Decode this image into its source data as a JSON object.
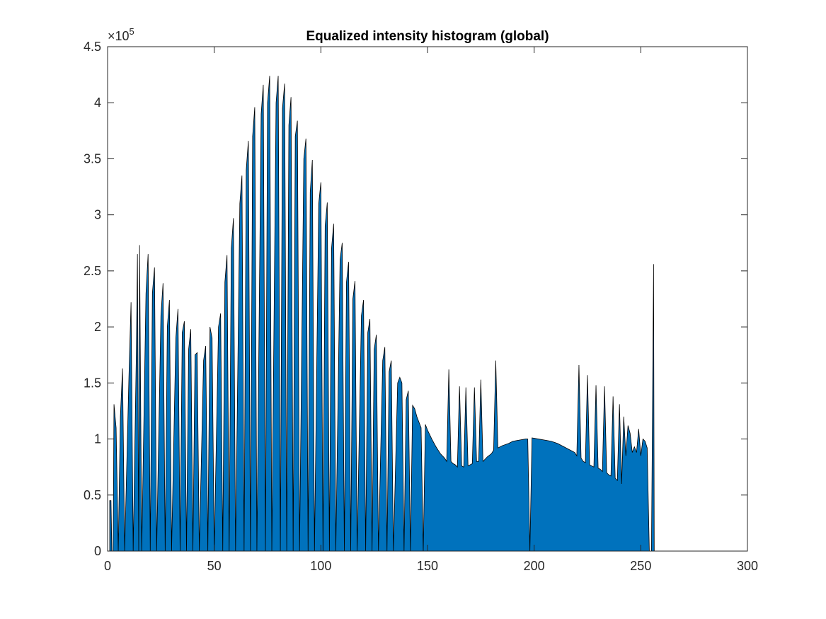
{
  "chart_data": {
    "type": "area",
    "title": "Equalized intensity histogram (global)",
    "xlabel": "",
    "ylabel": "",
    "xlim": [
      0,
      300
    ],
    "ylim": [
      0,
      4.5
    ],
    "y_multiplier_label": "×10",
    "y_multiplier_exponent": "5",
    "x_ticks": [
      0,
      50,
      100,
      150,
      200,
      250,
      300
    ],
    "x_tick_labels": [
      "0",
      "50",
      "100",
      "150",
      "200",
      "250",
      "300"
    ],
    "y_ticks": [
      0,
      0.5,
      1,
      1.5,
      2,
      2.5,
      3,
      3.5,
      4,
      4.5
    ],
    "y_tick_labels": [
      "0",
      "0.5",
      "1",
      "1.5",
      "2",
      "2.5",
      "3",
      "3.5",
      "4",
      "4.5"
    ],
    "grid": false,
    "box": true,
    "fill_color": "#0072BD",
    "edge_color": "#000000",
    "series": [
      {
        "values": [
          [
            1,
            0.45
          ],
          [
            1.6,
            0.45
          ],
          [
            2,
            0
          ],
          [
            2.6,
            0
          ],
          [
            3,
            1.31
          ],
          [
            4,
            1.1
          ],
          [
            5,
            0
          ],
          [
            6,
            1.2
          ],
          [
            7,
            1.63
          ],
          [
            8,
            0
          ],
          [
            10,
            1.55
          ],
          [
            11,
            2.22
          ],
          [
            12,
            0
          ],
          [
            13.5,
            1.8
          ],
          [
            14,
            2.65
          ],
          [
            14.6,
            0
          ],
          [
            15,
            2.73
          ],
          [
            16,
            0
          ],
          [
            18,
            2.3
          ],
          [
            19,
            2.65
          ],
          [
            20,
            0
          ],
          [
            21,
            2.3
          ],
          [
            22,
            2.53
          ],
          [
            23,
            0
          ],
          [
            25,
            2.1
          ],
          [
            26,
            2.39
          ],
          [
            27,
            0
          ],
          [
            28,
            2.0
          ],
          [
            29,
            2.24
          ],
          [
            30,
            0
          ],
          [
            32,
            1.9
          ],
          [
            33,
            2.16
          ],
          [
            34,
            0
          ],
          [
            35,
            1.95
          ],
          [
            36,
            2.05
          ],
          [
            37,
            0
          ],
          [
            38,
            1.8
          ],
          [
            39,
            1.98
          ],
          [
            40,
            0
          ],
          [
            41,
            1.75
          ],
          [
            42,
            1.77
          ],
          [
            43,
            0
          ],
          [
            45,
            1.7
          ],
          [
            46,
            1.83
          ],
          [
            47,
            0
          ],
          [
            48,
            2.0
          ],
          [
            49,
            1.9
          ],
          [
            50,
            0
          ],
          [
            52,
            2.0
          ],
          [
            53,
            2.12
          ],
          [
            54,
            0
          ],
          [
            55,
            2.4
          ],
          [
            56,
            2.64
          ],
          [
            57,
            0
          ],
          [
            58,
            2.7
          ],
          [
            59,
            2.97
          ],
          [
            60,
            0
          ],
          [
            62,
            3.1
          ],
          [
            63,
            3.35
          ],
          [
            64,
            0
          ],
          [
            65,
            3.4
          ],
          [
            66,
            3.66
          ],
          [
            67,
            0
          ],
          [
            68,
            3.7
          ],
          [
            69,
            3.96
          ],
          [
            70,
            0
          ],
          [
            72,
            3.9
          ],
          [
            73,
            4.16
          ],
          [
            74,
            0
          ],
          [
            75,
            4.0
          ],
          [
            76,
            4.24
          ],
          [
            77,
            0
          ],
          [
            79,
            4.0
          ],
          [
            80,
            4.24
          ],
          [
            81,
            0
          ],
          [
            82,
            3.95
          ],
          [
            83,
            4.17
          ],
          [
            84,
            0
          ],
          [
            85,
            3.8
          ],
          [
            86,
            4.05
          ],
          [
            87,
            0
          ],
          [
            88,
            3.7
          ],
          [
            89,
            3.84
          ],
          [
            90,
            0
          ],
          [
            92,
            3.5
          ],
          [
            93,
            3.68
          ],
          [
            94,
            0
          ],
          [
            95,
            3.2
          ],
          [
            96,
            3.49
          ],
          [
            97,
            0
          ],
          [
            99,
            3.1
          ],
          [
            100,
            3.29
          ],
          [
            101,
            0
          ],
          [
            102,
            2.9
          ],
          [
            103,
            3.11
          ],
          [
            104,
            0
          ],
          [
            105,
            2.7
          ],
          [
            106,
            2.92
          ],
          [
            107,
            0
          ],
          [
            109,
            2.6
          ],
          [
            110,
            2.75
          ],
          [
            111,
            0
          ],
          [
            112,
            2.4
          ],
          [
            113,
            2.58
          ],
          [
            114,
            0
          ],
          [
            115,
            2.25
          ],
          [
            116,
            2.41
          ],
          [
            117,
            0
          ],
          [
            119,
            2.1
          ],
          [
            120,
            2.24
          ],
          [
            121,
            0
          ],
          [
            122,
            1.95
          ],
          [
            123,
            2.07
          ],
          [
            124,
            0
          ],
          [
            125,
            1.8
          ],
          [
            126,
            1.93
          ],
          [
            127,
            0
          ],
          [
            129,
            1.7
          ],
          [
            130,
            1.82
          ],
          [
            131,
            0
          ],
          [
            132,
            1.6
          ],
          [
            133,
            1.7
          ],
          [
            134,
            0
          ],
          [
            136,
            1.5
          ],
          [
            137,
            1.55
          ],
          [
            138,
            1.5
          ],
          [
            139,
            0
          ],
          [
            140,
            1.35
          ],
          [
            141,
            1.43
          ],
          [
            142,
            0
          ],
          [
            143,
            1.3
          ],
          [
            144,
            1.27
          ],
          [
            145,
            1.2
          ],
          [
            147,
            1.1
          ],
          [
            148,
            0
          ],
          [
            149,
            1.13
          ],
          [
            150,
            1.08
          ],
          [
            152,
            1.0
          ],
          [
            154,
            0.93
          ],
          [
            156,
            0.87
          ],
          [
            158,
            0.83
          ],
          [
            159,
            0.8
          ],
          [
            160,
            1.62
          ],
          [
            161,
            0.8
          ],
          [
            162,
            0.78
          ],
          [
            163,
            0.77
          ],
          [
            164,
            0.75
          ],
          [
            165,
            1.47
          ],
          [
            166,
            0.76
          ],
          [
            167,
            0.75
          ],
          [
            168,
            1.46
          ],
          [
            169,
            0.76
          ],
          [
            170,
            0.77
          ],
          [
            171,
            0.78
          ],
          [
            172,
            1.46
          ],
          [
            173,
            0.8
          ],
          [
            174,
            0.8
          ],
          [
            175,
            1.53
          ],
          [
            176,
            0.8
          ],
          [
            178,
            0.84
          ],
          [
            180,
            0.87
          ],
          [
            181,
            0.9
          ],
          [
            182,
            1.7
          ],
          [
            183,
            0.92
          ],
          [
            185,
            0.94
          ],
          [
            188,
            0.96
          ],
          [
            190,
            0.98
          ],
          [
            193,
            0.99
          ],
          [
            196,
            1.0
          ],
          [
            197,
            1.0
          ],
          [
            198,
            0
          ],
          [
            199,
            1.01
          ],
          [
            202,
            1.0
          ],
          [
            205,
            0.99
          ],
          [
            208,
            0.98
          ],
          [
            211,
            0.96
          ],
          [
            214,
            0.93
          ],
          [
            217,
            0.9
          ],
          [
            219,
            0.88
          ],
          [
            220,
            0.85
          ],
          [
            221,
            1.66
          ],
          [
            222,
            0.83
          ],
          [
            223,
            0.8
          ],
          [
            224,
            0.79
          ],
          [
            225,
            1.57
          ],
          [
            226,
            0.77
          ],
          [
            227,
            0.76
          ],
          [
            228,
            0.75
          ],
          [
            229,
            1.48
          ],
          [
            230,
            0.74
          ],
          [
            231,
            0.73
          ],
          [
            232,
            0.71
          ],
          [
            233,
            1.47
          ],
          [
            234,
            0.7
          ],
          [
            235,
            0.68
          ],
          [
            236,
            0.67
          ],
          [
            237,
            1.38
          ],
          [
            238,
            0.65
          ],
          [
            239,
            0.63
          ],
          [
            240,
            1.31
          ],
          [
            241,
            0.6
          ],
          [
            242,
            1.2
          ],
          [
            243,
            0.85
          ],
          [
            244,
            1.12
          ],
          [
            245,
            1.05
          ],
          [
            246,
            0.88
          ],
          [
            247,
            0.93
          ],
          [
            248,
            0.88
          ],
          [
            249,
            1.09
          ],
          [
            250,
            0.85
          ],
          [
            251,
            1.0
          ],
          [
            252,
            0.98
          ],
          [
            253,
            0.92
          ],
          [
            254,
            0
          ],
          [
            255,
            0
          ],
          [
            256,
            2.56
          ],
          [
            256.3,
            0
          ]
        ]
      }
    ]
  }
}
